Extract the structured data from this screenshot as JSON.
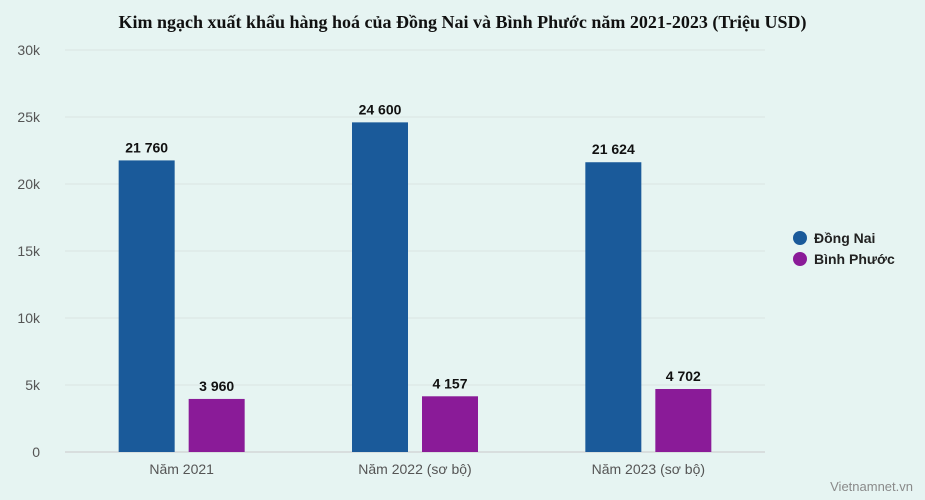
{
  "chart_data": {
    "type": "bar",
    "title": "Kim ngạch xuất khẩu hàng hoá của Đồng Nai và Bình Phước năm 2021-2023 (Triệu USD)",
    "categories": [
      "Năm 2021",
      "Năm 2022 (sơ bộ)",
      "Năm 2023 (sơ bộ)"
    ],
    "series": [
      {
        "name": "Đồng Nai",
        "values": [
          21760,
          24600,
          21624
        ],
        "labels": [
          "21 760",
          "24 600",
          "21 624"
        ],
        "color": "#1a5a9a"
      },
      {
        "name": "Bình Phước",
        "values": [
          3960,
          4157,
          4702
        ],
        "labels": [
          "3 960",
          "4 157",
          "4 702"
        ],
        "color": "#8a1b98"
      }
    ],
    "ylim": [
      0,
      30000
    ],
    "yticks": [
      0,
      5000,
      10000,
      15000,
      20000,
      25000,
      30000
    ],
    "ytick_labels": [
      "0",
      "5k",
      "10k",
      "15k",
      "20k",
      "25k",
      "30k"
    ],
    "xlabel": "",
    "ylabel": "",
    "grid": true,
    "legend_position": "right"
  },
  "watermark": "Vietnamnet.vn"
}
